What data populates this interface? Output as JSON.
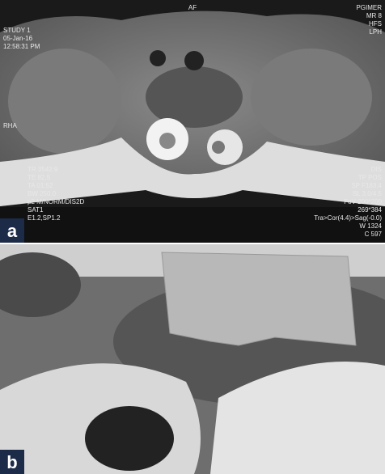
{
  "panels": [
    {
      "label": "a",
      "overlay": {
        "top_center": "AF",
        "top_left": [
          "STUDY 1",
          "05-Jan-16",
          "12:58:31 PM"
        ],
        "top_right": [
          "PGIMER",
          "MR 8",
          "HFS",
          "LPH"
        ],
        "left_side": [
          "RHA"
        ],
        "bottom_left": [
          "TR 3542.9",
          "TE 82.5",
          "TA 01:52",
          "BW 250.0",
          "p2 M/NORM/DIS2D",
          "SAT1",
          "E1.2,SP1.2"
        ],
        "bottom_right": [
          "DIS",
          "TP POS",
          "SP F183.4",
          "SL 3.0/4.5",
          "FoV 200*200",
          "269*384",
          "Tra>Cor(4.4)>Sag(-0.0)",
          "W 1324",
          "C 597"
        ]
      }
    },
    {
      "label": "b"
    }
  ]
}
